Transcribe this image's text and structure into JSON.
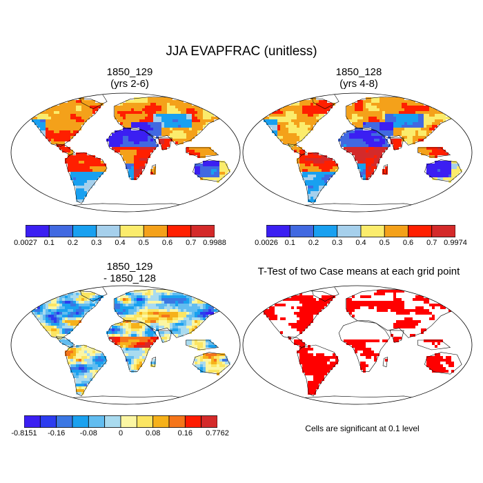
{
  "title": "JJA EVAPFRAC (unitless)",
  "panels": [
    {
      "title_line1": "1850_129",
      "title_line2": "(yrs 2-6)",
      "colorbar": {
        "labels": [
          "0.0027",
          "0.1",
          "0.2",
          "0.3",
          "0.4",
          "0.5",
          "0.6",
          "0.7",
          "0.9988"
        ],
        "colors": [
          "#3b1ff2",
          "#4169e1",
          "#19a0f0",
          "#a6d0ec",
          "#fbec6c",
          "#f4a11a",
          "#ff1f00",
          "#d42a2a"
        ]
      }
    },
    {
      "title_line1": "1850_128",
      "title_line2": "(yrs 4-8)",
      "colorbar": {
        "labels": [
          "0.0026",
          "0.1",
          "0.2",
          "0.3",
          "0.4",
          "0.5",
          "0.6",
          "0.7",
          "0.9974"
        ],
        "colors": [
          "#3b1ff2",
          "#4169e1",
          "#19a0f0",
          "#a6d0ec",
          "#fbec6c",
          "#f4a11a",
          "#ff1f00",
          "#d42a2a"
        ]
      }
    },
    {
      "title_line1": "1850_129",
      "title_line2": "- 1850_128",
      "colorbar": {
        "labels": [
          "-0.8151",
          "-0.16",
          "-0.08",
          "0",
          "0.08",
          "0.16",
          "0.7762"
        ],
        "colors": [
          "#3b1ff2",
          "#2c3cf0",
          "#3b77e3",
          "#1aa1ef",
          "#62bdf0",
          "#a9dbef",
          "#fbf6a3",
          "#fbe562",
          "#f6b11a",
          "#f5751a",
          "#fe1b00",
          "#d42a2a"
        ]
      }
    },
    {
      "title_line1": "T-Test of two Case means at each grid point",
      "note": "Cells are significant at 0.1 level"
    }
  ]
}
